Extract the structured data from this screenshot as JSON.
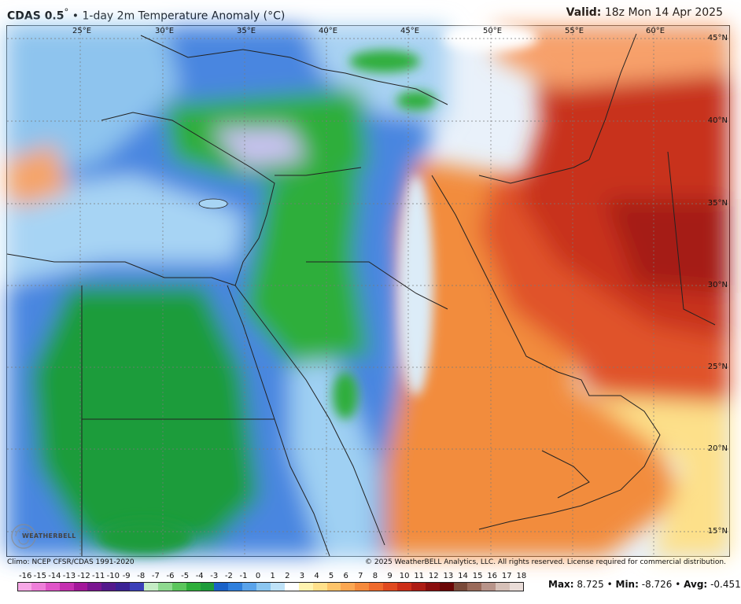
{
  "header": {
    "model": "CDAS 0.5",
    "model_unit": "°",
    "bullet": "•",
    "title": "1-day 2m Temperature Anomaly (°C)",
    "valid_label": "Valid:",
    "valid_time": "18z Mon 14 Apr 2025"
  },
  "map": {
    "longitudes": [
      "25°E",
      "30°E",
      "35°E",
      "40°E",
      "45°E",
      "50°E",
      "55°E",
      "60°E"
    ],
    "latitudes": [
      "45°N",
      "40°N",
      "35°N",
      "30°N",
      "25°N",
      "20°N",
      "15°N"
    ],
    "region_colors": {
      "land_cold": "#1e9c3a",
      "land_cool": "#3f6fd6",
      "sea_cool": "#8cc6f0",
      "warm_orange": "#f28c3c",
      "hot_red": "#c8321a",
      "neutral": "#f3f6fa",
      "border": "#222222"
    }
  },
  "footer": {
    "climo": "Climo: NCEP CFSR/CDAS 1991-2020",
    "copyright": "© 2025 WeatherBELL Analytics, LLC. All rights reserved. License required for commercial distribution."
  },
  "logo": {
    "text": "WEATHERBELL",
    "icon": "weatherbell-logo-icon"
  },
  "colorbar": {
    "labels": [
      "-16",
      "-15",
      "-14",
      "-13",
      "-12",
      "-11",
      "-10",
      "-9",
      "-8",
      "-7",
      "-6",
      "-5",
      "-4",
      "-3",
      "-2",
      "-1",
      "0",
      "1",
      "2",
      "3",
      "4",
      "5",
      "6",
      "7",
      "8",
      "9",
      "10",
      "11",
      "12",
      "13",
      "14",
      "15",
      "16",
      "17",
      "18"
    ],
    "colors": [
      "#f7a8e6",
      "#ee7fd9",
      "#e055c8",
      "#c52fb0",
      "#a3179a",
      "#7a1590",
      "#54198c",
      "#3b2294",
      "#3b3fb8",
      "#c5ecc4",
      "#8fd98f",
      "#5cc65c",
      "#2fae3a",
      "#1e9c3a",
      "#1a62c8",
      "#2f7fdc",
      "#5aa3ea",
      "#8cc6f0",
      "#bfe2f8",
      "#ffffff",
      "#fff3b0",
      "#ffe08a",
      "#fdc46a",
      "#fba752",
      "#f58a3c",
      "#ee6a2c",
      "#e04a20",
      "#cc2e18",
      "#ad1c14",
      "#8a0e0e",
      "#6a0606",
      "#7a4a3a",
      "#9a6a5a",
      "#b8948a",
      "#d6c0b8",
      "#e9dcd8"
    ]
  },
  "stats": {
    "max_label": "Max:",
    "max": "8.725",
    "min_label": "Min:",
    "min": "-8.726",
    "avg_label": "Avg:",
    "avg": "-0.451",
    "sep": "•"
  }
}
